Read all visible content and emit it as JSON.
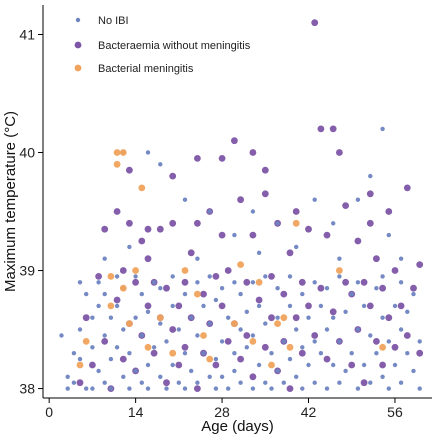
{
  "chart_data": {
    "type": "scatter",
    "title": "",
    "xlabel": "Age (days)",
    "ylabel": "Maximum temperature (°C)",
    "xlim": [
      -1,
      62
    ],
    "ylim": [
      37.92,
      41.25
    ],
    "xticks": [
      0,
      14,
      28,
      42,
      56
    ],
    "yticks": [
      38,
      39,
      40,
      41
    ],
    "grid": false,
    "legend_position": "top-left",
    "series": [
      {
        "name": "No IBI",
        "color": "#6e84c1",
        "marker_size": "small",
        "points": [
          [
            2,
            38.45
          ],
          [
            3,
            38.1
          ],
          [
            3,
            38.0
          ],
          [
            4,
            38.3
          ],
          [
            4,
            38.05
          ],
          [
            5,
            38.9
          ],
          [
            5,
            38.5
          ],
          [
            5,
            38.25
          ],
          [
            6,
            38.0
          ],
          [
            6,
            38.8
          ],
          [
            7,
            38.35
          ],
          [
            7,
            38.6
          ],
          [
            7,
            38.0
          ],
          [
            8,
            38.9
          ],
          [
            8,
            38.15
          ],
          [
            8,
            38.7
          ],
          [
            9,
            38.05
          ],
          [
            9,
            38.45
          ],
          [
            9,
            38.8
          ],
          [
            10,
            38.25
          ],
          [
            10,
            38.6
          ],
          [
            10,
            38.0
          ],
          [
            11,
            38.95
          ],
          [
            11,
            38.35
          ],
          [
            11,
            38.7
          ],
          [
            12,
            38.1
          ],
          [
            12,
            38.5
          ],
          [
            12,
            38.85
          ],
          [
            13,
            39.2
          ],
          [
            13,
            38.3
          ],
          [
            13,
            38.0
          ],
          [
            14,
            38.6
          ],
          [
            14,
            38.15
          ],
          [
            14,
            38.95
          ],
          [
            15,
            38.05
          ],
          [
            15,
            38.45
          ],
          [
            15,
            38.8
          ],
          [
            16,
            38.2
          ],
          [
            16,
            38.65
          ],
          [
            16,
            38.0
          ],
          [
            17,
            38.9
          ],
          [
            17,
            38.35
          ],
          [
            18,
            38.55
          ],
          [
            18,
            38.1
          ],
          [
            18,
            38.85
          ],
          [
            19,
            38.0
          ],
          [
            19,
            38.4
          ],
          [
            20,
            38.7
          ],
          [
            20,
            38.2
          ],
          [
            20,
            38.95
          ],
          [
            21,
            38.05
          ],
          [
            21,
            38.5
          ],
          [
            22,
            38.3
          ],
          [
            22,
            38.8
          ],
          [
            22,
            38.0
          ],
          [
            23,
            38.6
          ],
          [
            23,
            38.15
          ],
          [
            24,
            38.45
          ],
          [
            24,
            38.9
          ],
          [
            24,
            38.05
          ],
          [
            25,
            38.3
          ],
          [
            25,
            38.7
          ],
          [
            26,
            38.1
          ],
          [
            26,
            38.55
          ],
          [
            26,
            38.95
          ],
          [
            27,
            38.25
          ],
          [
            27,
            38.0
          ],
          [
            27,
            38.75
          ],
          [
            28,
            38.4
          ],
          [
            28,
            38.85
          ],
          [
            28,
            38.1
          ],
          [
            29,
            38.6
          ],
          [
            29,
            38.0
          ],
          [
            30,
            38.3
          ],
          [
            30,
            38.9
          ],
          [
            30,
            38.15
          ],
          [
            31,
            38.5
          ],
          [
            31,
            38.05
          ],
          [
            31,
            38.8
          ],
          [
            32,
            38.35
          ],
          [
            32,
            38.65
          ],
          [
            33,
            38.0
          ],
          [
            33,
            38.45
          ],
          [
            33,
            38.9
          ],
          [
            34,
            38.2
          ],
          [
            34,
            38.7
          ],
          [
            35,
            38.05
          ],
          [
            35,
            38.55
          ],
          [
            35,
            38.95
          ],
          [
            36,
            38.3
          ],
          [
            36,
            38.0
          ],
          [
            37,
            38.6
          ],
          [
            37,
            38.15
          ],
          [
            37,
            38.85
          ],
          [
            38,
            38.4
          ],
          [
            38,
            38.05
          ],
          [
            39,
            38.7
          ],
          [
            39,
            38.25
          ],
          [
            39,
            38.95
          ],
          [
            40,
            38.5
          ],
          [
            40,
            38.1
          ],
          [
            41,
            38.35
          ],
          [
            41,
            38.8
          ],
          [
            41,
            38.0
          ],
          [
            42,
            38.6
          ],
          [
            42,
            38.2
          ],
          [
            43,
            38.9
          ],
          [
            43,
            38.4
          ],
          [
            43,
            38.05
          ],
          [
            44,
            38.7
          ],
          [
            44,
            38.3
          ],
          [
            45,
            38.5
          ],
          [
            45,
            38.0
          ],
          [
            45,
            38.85
          ],
          [
            46,
            38.2
          ],
          [
            46,
            38.6
          ],
          [
            47,
            38.4
          ],
          [
            47,
            38.05
          ],
          [
            47,
            38.95
          ],
          [
            48,
            38.65
          ],
          [
            48,
            38.15
          ],
          [
            49,
            38.3
          ],
          [
            49,
            38.8
          ],
          [
            50,
            38.0
          ],
          [
            50,
            38.5
          ],
          [
            50,
            38.9
          ],
          [
            51,
            38.2
          ],
          [
            51,
            38.7
          ],
          [
            52,
            38.05
          ],
          [
            52,
            38.45
          ],
          [
            53,
            38.85
          ],
          [
            53,
            38.3
          ],
          [
            54,
            38.6
          ],
          [
            54,
            38.1
          ],
          [
            54,
            38.95
          ],
          [
            55,
            38.4
          ],
          [
            55,
            38.0
          ],
          [
            56,
            38.7
          ],
          [
            56,
            38.2
          ],
          [
            57,
            38.5
          ],
          [
            57,
            38.05
          ],
          [
            57,
            38.9
          ],
          [
            58,
            38.3
          ],
          [
            58,
            38.65
          ],
          [
            59,
            38.15
          ],
          [
            59,
            38.8
          ],
          [
            60,
            38.4
          ],
          [
            60,
            38.0
          ],
          [
            9,
            39.1
          ],
          [
            12,
            40.0
          ],
          [
            16,
            40.0
          ],
          [
            18,
            39.9
          ],
          [
            22,
            39.6
          ],
          [
            26,
            39.5
          ],
          [
            30,
            39.3
          ],
          [
            33,
            39.5
          ],
          [
            37,
            39.4
          ],
          [
            40,
            39.2
          ],
          [
            43,
            39.6
          ],
          [
            46,
            39.4
          ],
          [
            50,
            39.6
          ],
          [
            52,
            39.8
          ],
          [
            54,
            40.2
          ],
          [
            55,
            39.3
          ],
          [
            57,
            39.1
          ],
          [
            34,
            39.15
          ],
          [
            24,
            39.1
          ],
          [
            47,
            39.1
          ]
        ]
      },
      {
        "name": "Bacteraemia without meningitis",
        "color": "#7d55a6",
        "marker_size": "medium",
        "points": [
          [
            5,
            38.05
          ],
          [
            6,
            38.6
          ],
          [
            7,
            38.2
          ],
          [
            8,
            38.95
          ],
          [
            9,
            39.35
          ],
          [
            9,
            38.4
          ],
          [
            10,
            38.0
          ],
          [
            11,
            39.5
          ],
          [
            11,
            38.75
          ],
          [
            12,
            38.25
          ],
          [
            12,
            39.0
          ],
          [
            13,
            39.4
          ],
          [
            13,
            38.55
          ],
          [
            14,
            38.9
          ],
          [
            14,
            38.15
          ],
          [
            15,
            39.25
          ],
          [
            15,
            38.45
          ],
          [
            16,
            38.7
          ],
          [
            16,
            39.1
          ],
          [
            17,
            38.3
          ],
          [
            17,
            38.9
          ],
          [
            18,
            39.35
          ],
          [
            18,
            38.6
          ],
          [
            19,
            38.05
          ],
          [
            19,
            38.85
          ],
          [
            20,
            39.4
          ],
          [
            20,
            38.5
          ],
          [
            21,
            38.7
          ],
          [
            21,
            38.2
          ],
          [
            22,
            38.9
          ],
          [
            22,
            38.35
          ],
          [
            23,
            39.15
          ],
          [
            23,
            38.6
          ],
          [
            24,
            39.4
          ],
          [
            24,
            38.0
          ],
          [
            25,
            38.8
          ],
          [
            25,
            38.3
          ],
          [
            26,
            39.5
          ],
          [
            26,
            38.55
          ],
          [
            27,
            38.95
          ],
          [
            27,
            38.2
          ],
          [
            28,
            39.3
          ],
          [
            28,
            38.7
          ],
          [
            29,
            38.4
          ],
          [
            29,
            39.0
          ],
          [
            30,
            40.1
          ],
          [
            30,
            38.55
          ],
          [
            31,
            39.6
          ],
          [
            31,
            38.25
          ],
          [
            32,
            38.9
          ],
          [
            32,
            38.45
          ],
          [
            33,
            39.3
          ],
          [
            33,
            38.1
          ],
          [
            34,
            38.75
          ],
          [
            35,
            39.65
          ],
          [
            35,
            38.35
          ],
          [
            36,
            38.95
          ],
          [
            36,
            38.6
          ],
          [
            37,
            39.4
          ],
          [
            37,
            38.15
          ],
          [
            38,
            38.8
          ],
          [
            38,
            38.4
          ],
          [
            39,
            39.15
          ],
          [
            39,
            38.0
          ],
          [
            40,
            38.6
          ],
          [
            40,
            39.5
          ],
          [
            41,
            38.9
          ],
          [
            41,
            38.3
          ],
          [
            42,
            39.35
          ],
          [
            42,
            38.7
          ],
          [
            43,
            41.1
          ],
          [
            43,
            38.45
          ],
          [
            44,
            40.2
          ],
          [
            44,
            38.85
          ],
          [
            45,
            39.3
          ],
          [
            45,
            38.25
          ],
          [
            46,
            40.2
          ],
          [
            46,
            38.65
          ],
          [
            47,
            40.0
          ],
          [
            47,
            38.4
          ],
          [
            48,
            39.55
          ],
          [
            48,
            38.9
          ],
          [
            49,
            38.2
          ],
          [
            49,
            38.8
          ],
          [
            50,
            39.25
          ],
          [
            50,
            38.5
          ],
          [
            51,
            38.9
          ],
          [
            51,
            38.05
          ],
          [
            52,
            39.4
          ],
          [
            52,
            38.7
          ],
          [
            53,
            38.4
          ],
          [
            53,
            39.1
          ],
          [
            54,
            38.85
          ],
          [
            54,
            38.2
          ],
          [
            55,
            39.5
          ],
          [
            55,
            38.6
          ],
          [
            56,
            38.35
          ],
          [
            56,
            39.0
          ],
          [
            57,
            38.7
          ],
          [
            58,
            39.7
          ],
          [
            58,
            38.45
          ],
          [
            59,
            38.85
          ],
          [
            60,
            39.05
          ],
          [
            60,
            38.3
          ],
          [
            28,
            39.95
          ],
          [
            24,
            39.95
          ],
          [
            33,
            40.0
          ],
          [
            13,
            39.85
          ],
          [
            20,
            39.8
          ],
          [
            35,
            39.85
          ],
          [
            52,
            39.65
          ],
          [
            16,
            39.35
          ]
        ]
      },
      {
        "name": "Bacterial meningitis",
        "color": "#f0a35c",
        "marker_size": "medium",
        "points": [
          [
            5,
            38.2
          ],
          [
            6,
            38.4
          ],
          [
            10,
            38.95
          ],
          [
            10,
            38.7
          ],
          [
            11,
            40.0
          ],
          [
            11,
            39.9
          ],
          [
            12,
            38.85
          ],
          [
            12,
            40.0
          ],
          [
            13,
            38.55
          ],
          [
            14,
            39.0
          ],
          [
            15,
            39.7
          ],
          [
            16,
            38.35
          ],
          [
            18,
            38.6
          ],
          [
            20,
            38.3
          ],
          [
            22,
            39.0
          ],
          [
            24,
            38.8
          ],
          [
            25,
            38.45
          ],
          [
            26,
            38.25
          ],
          [
            30,
            38.55
          ],
          [
            31,
            39.05
          ],
          [
            33,
            38.4
          ],
          [
            34,
            38.9
          ],
          [
            36,
            38.2
          ],
          [
            37,
            38.55
          ],
          [
            38,
            38.6
          ],
          [
            39,
            38.35
          ],
          [
            40,
            39.4
          ],
          [
            47,
            39.0
          ],
          [
            54,
            38.35
          ]
        ]
      }
    ]
  }
}
